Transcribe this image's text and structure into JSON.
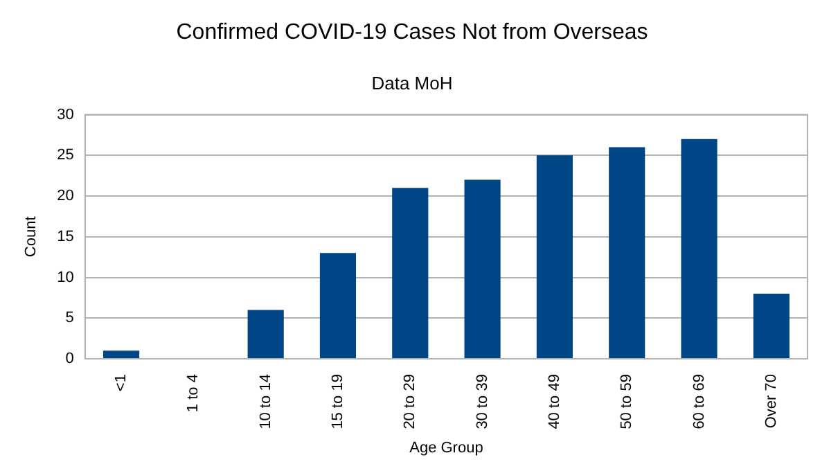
{
  "chart_data": {
    "type": "bar",
    "title": "Confirmed COVID-19 Cases Not from Overseas",
    "subtitle": "Data MoH",
    "xlabel": "Age Group",
    "ylabel": "Count",
    "categories": [
      "<1",
      "1 to 4",
      "10 to 14",
      "15 to 19",
      "20 to 29",
      "30 to 39",
      "40 to 49",
      "50 to 59",
      "60 to 69",
      "Over 70"
    ],
    "values": [
      1,
      0,
      6,
      13,
      21,
      22,
      25,
      26,
      27,
      8
    ],
    "color": "#004586",
    "ylim": [
      0,
      30
    ],
    "yticks": [
      0,
      5,
      10,
      15,
      20,
      25,
      30
    ],
    "grid": "y",
    "legend": false
  }
}
